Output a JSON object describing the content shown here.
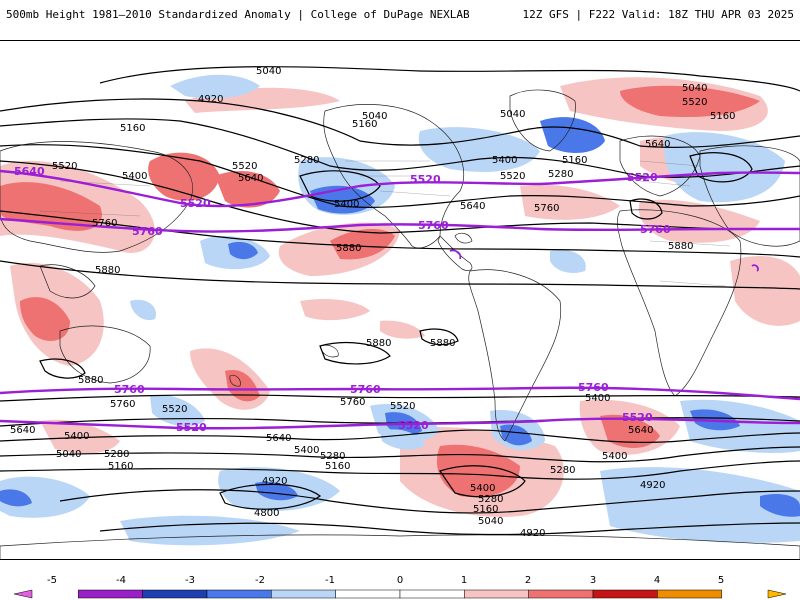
{
  "header": {
    "title": "500mb Height 1981–2010 Standardized Anomaly | College of DuPage NEXLAB",
    "run_info": "12Z GFS | F222 Valid: 18Z THU APR 03 2025"
  },
  "map": {
    "contour_labels": {
      "black": [
        "5040",
        "4920",
        "5040",
        "5160",
        "5160",
        "5400",
        "5520",
        "5280",
        "5640",
        "5520",
        "5400",
        "5760",
        "5880",
        "5640",
        "5520",
        "5400",
        "5040",
        "5160",
        "5040",
        "5160",
        "5400",
        "5520",
        "5280",
        "5640",
        "5760",
        "5880",
        "5520",
        "5640",
        "5400",
        "5160",
        "5280",
        "5760",
        "5880",
        "5880",
        "5880",
        "5880",
        "5760",
        "5520",
        "5640",
        "5400",
        "5040",
        "5160",
        "5280",
        "5400",
        "5640",
        "5760",
        "4920",
        "4800",
        "5280",
        "5400",
        "5520",
        "5640",
        "5160",
        "5400",
        "5040",
        "4920",
        "5280",
        "4920"
      ],
      "purple": [
        "5640",
        "5520",
        "5760",
        "5520",
        "5760",
        "5520",
        "5760",
        "5760",
        "5760",
        "5760",
        "5520",
        "5520",
        "5520"
      ]
    }
  },
  "legend": {
    "ticks": [
      "-5",
      "-4",
      "-3",
      "-2",
      "-1",
      "0",
      "1",
      "2",
      "3",
      "4",
      "5"
    ],
    "colors": [
      "#e060e0",
      "#9a1fc6",
      "#1f3fb0",
      "#4a78e8",
      "#b9d6f7",
      "#ffffff",
      "#ffffff",
      "#f7c4c4",
      "#ee7272",
      "#c41616",
      "#f08c00",
      "#ffb700"
    ]
  }
}
